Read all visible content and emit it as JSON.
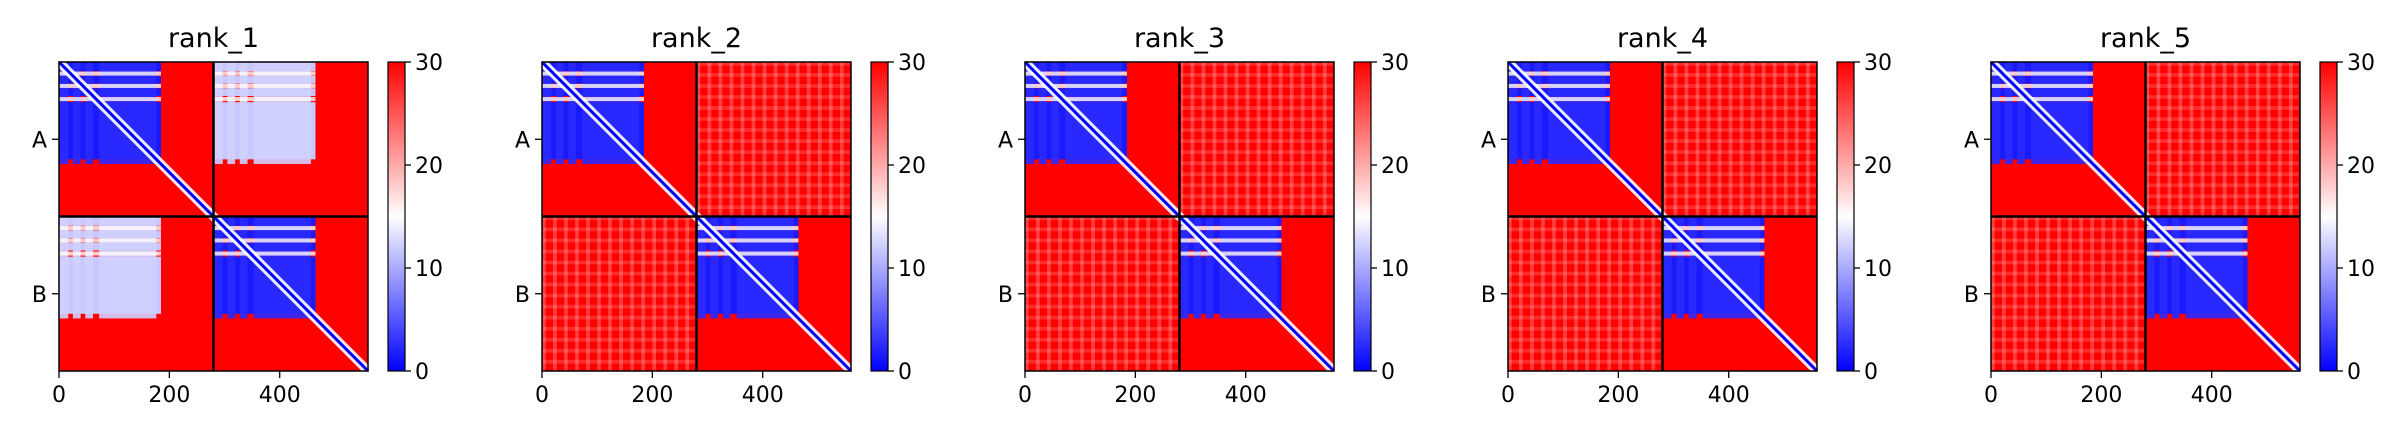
{
  "chart_data": [
    {
      "type": "heatmap",
      "title": "rank_1",
      "x_ticks": [
        0,
        200,
        400
      ],
      "xlim": [
        0,
        560
      ],
      "y_labels": [
        "A",
        "B"
      ],
      "chain_boundary": 280,
      "colorbar": {
        "min": 0,
        "max": 30,
        "ticks": [
          0,
          10,
          20,
          30
        ]
      },
      "off_diagonal_error": "low"
    },
    {
      "type": "heatmap",
      "title": "rank_2",
      "x_ticks": [
        0,
        200,
        400
      ],
      "xlim": [
        0,
        560
      ],
      "y_labels": [
        "A",
        "B"
      ],
      "chain_boundary": 280,
      "colorbar": {
        "min": 0,
        "max": 30,
        "ticks": [
          0,
          10,
          20,
          30
        ]
      },
      "off_diagonal_error": "high"
    },
    {
      "type": "heatmap",
      "title": "rank_3",
      "x_ticks": [
        0,
        200,
        400
      ],
      "xlim": [
        0,
        560
      ],
      "y_labels": [
        "A",
        "B"
      ],
      "chain_boundary": 280,
      "colorbar": {
        "min": 0,
        "max": 30,
        "ticks": [
          0,
          10,
          20,
          30
        ]
      },
      "off_diagonal_error": "high"
    },
    {
      "type": "heatmap",
      "title": "rank_4",
      "x_ticks": [
        0,
        200,
        400
      ],
      "xlim": [
        0,
        560
      ],
      "y_labels": [
        "A",
        "B"
      ],
      "chain_boundary": 280,
      "colorbar": {
        "min": 0,
        "max": 30,
        "ticks": [
          0,
          10,
          20,
          30
        ]
      },
      "off_diagonal_error": "high"
    },
    {
      "type": "heatmap",
      "title": "rank_5",
      "x_ticks": [
        0,
        200,
        400
      ],
      "xlim": [
        0,
        560
      ],
      "y_labels": [
        "A",
        "B"
      ],
      "chain_boundary": 280,
      "colorbar": {
        "min": 0,
        "max": 30,
        "ticks": [
          0,
          10,
          20,
          30
        ]
      },
      "off_diagonal_error": "high"
    }
  ],
  "colors": {
    "low": "#0000ff",
    "mid": "#ffffff",
    "high": "#ff0000"
  }
}
